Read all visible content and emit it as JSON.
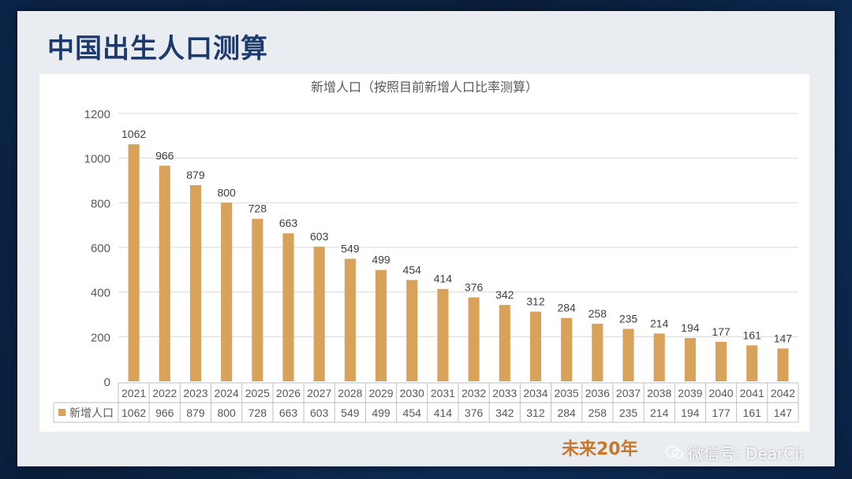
{
  "slide": {
    "title": "中国出生人口测算",
    "bottom_note": "未来20年",
    "watermark": "微信号: DearCii"
  },
  "colors": {
    "bar": "#d9a25a",
    "axis_text": "#595959",
    "grid": "#d9d9d9"
  },
  "chart_data": {
    "type": "bar",
    "title": "新增人口（按照目前新增人口比率测算）",
    "categories": [
      "2021",
      "2022",
      "2023",
      "2024",
      "2025",
      "2026",
      "2027",
      "2028",
      "2029",
      "2030",
      "2031",
      "2032",
      "2033",
      "2034",
      "2035",
      "2036",
      "2037",
      "2038",
      "2039",
      "2040",
      "2041",
      "2042"
    ],
    "series": [
      {
        "name": "新增人口",
        "values": [
          1062,
          966,
          879,
          800,
          728,
          663,
          603,
          549,
          499,
          454,
          414,
          376,
          342,
          312,
          284,
          258,
          235,
          214,
          194,
          177,
          161,
          147
        ]
      }
    ],
    "ylim": [
      0,
      1200
    ],
    "yticks": [
      "0",
      "200",
      "400",
      "600",
      "800",
      "1000",
      "1200"
    ],
    "grid": true,
    "data_table": true
  }
}
